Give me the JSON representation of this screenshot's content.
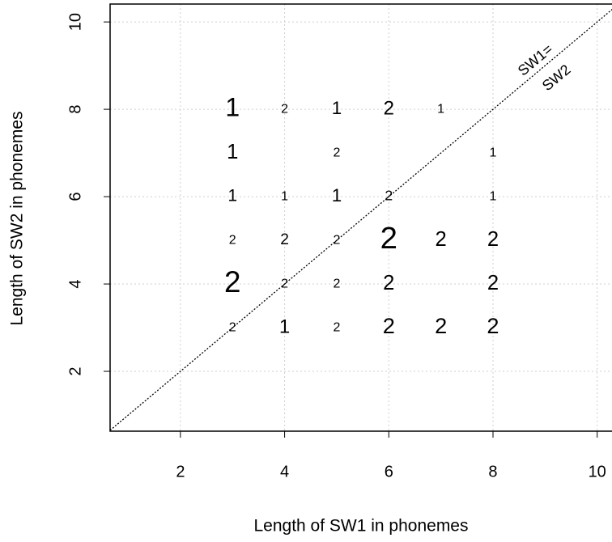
{
  "chart_data": {
    "type": "scatter",
    "x_label": "Length of SW1 in phonemes",
    "y_label": "Length of SW2 in phonemes",
    "annotation": [
      "SW1=",
      "SW2"
    ],
    "diagonal": true,
    "grid": true,
    "color": "#000000",
    "xlim": [
      0.65,
      10.3
    ],
    "ylim": [
      0.63,
      10.41
    ],
    "xticks": [
      2,
      4,
      6,
      8,
      10
    ],
    "yticks": [
      2,
      4,
      6,
      8,
      10
    ],
    "series": [
      {
        "x": [
          3,
          4,
          5,
          6,
          7,
          3,
          5,
          8,
          3,
          4,
          5,
          6,
          8,
          3,
          4,
          5,
          6,
          7,
          8,
          3,
          4,
          5,
          6,
          8,
          3,
          4,
          5,
          6,
          7,
          8
        ],
        "y": [
          8,
          8,
          8,
          8,
          8,
          7,
          7,
          7,
          6,
          6,
          6,
          6,
          6,
          5,
          5,
          5,
          5,
          5,
          5,
          4,
          4,
          4,
          4,
          4,
          3,
          3,
          3,
          3,
          3,
          3
        ],
        "labels": [
          "1",
          "2",
          "1",
          "2",
          "1",
          "1",
          "2",
          "1",
          "1",
          "1",
          "1",
          "2",
          "1",
          "2",
          "2",
          "2",
          "2",
          "2",
          "2",
          "2",
          "2",
          "2",
          "2",
          "2",
          "2",
          "1",
          "2",
          "2",
          "2",
          "2"
        ],
        "sizes": [
          2,
          1,
          1.4,
          1.5,
          1,
          1.6,
          1,
          1,
          1.3,
          1,
          1.4,
          1.1,
          1,
          1,
          1.2,
          1,
          2.4,
          1.6,
          1.6,
          2.3,
          1,
          1,
          1.6,
          1.6,
          1,
          1.5,
          1,
          1.7,
          1.7,
          1.7
        ]
      }
    ]
  }
}
